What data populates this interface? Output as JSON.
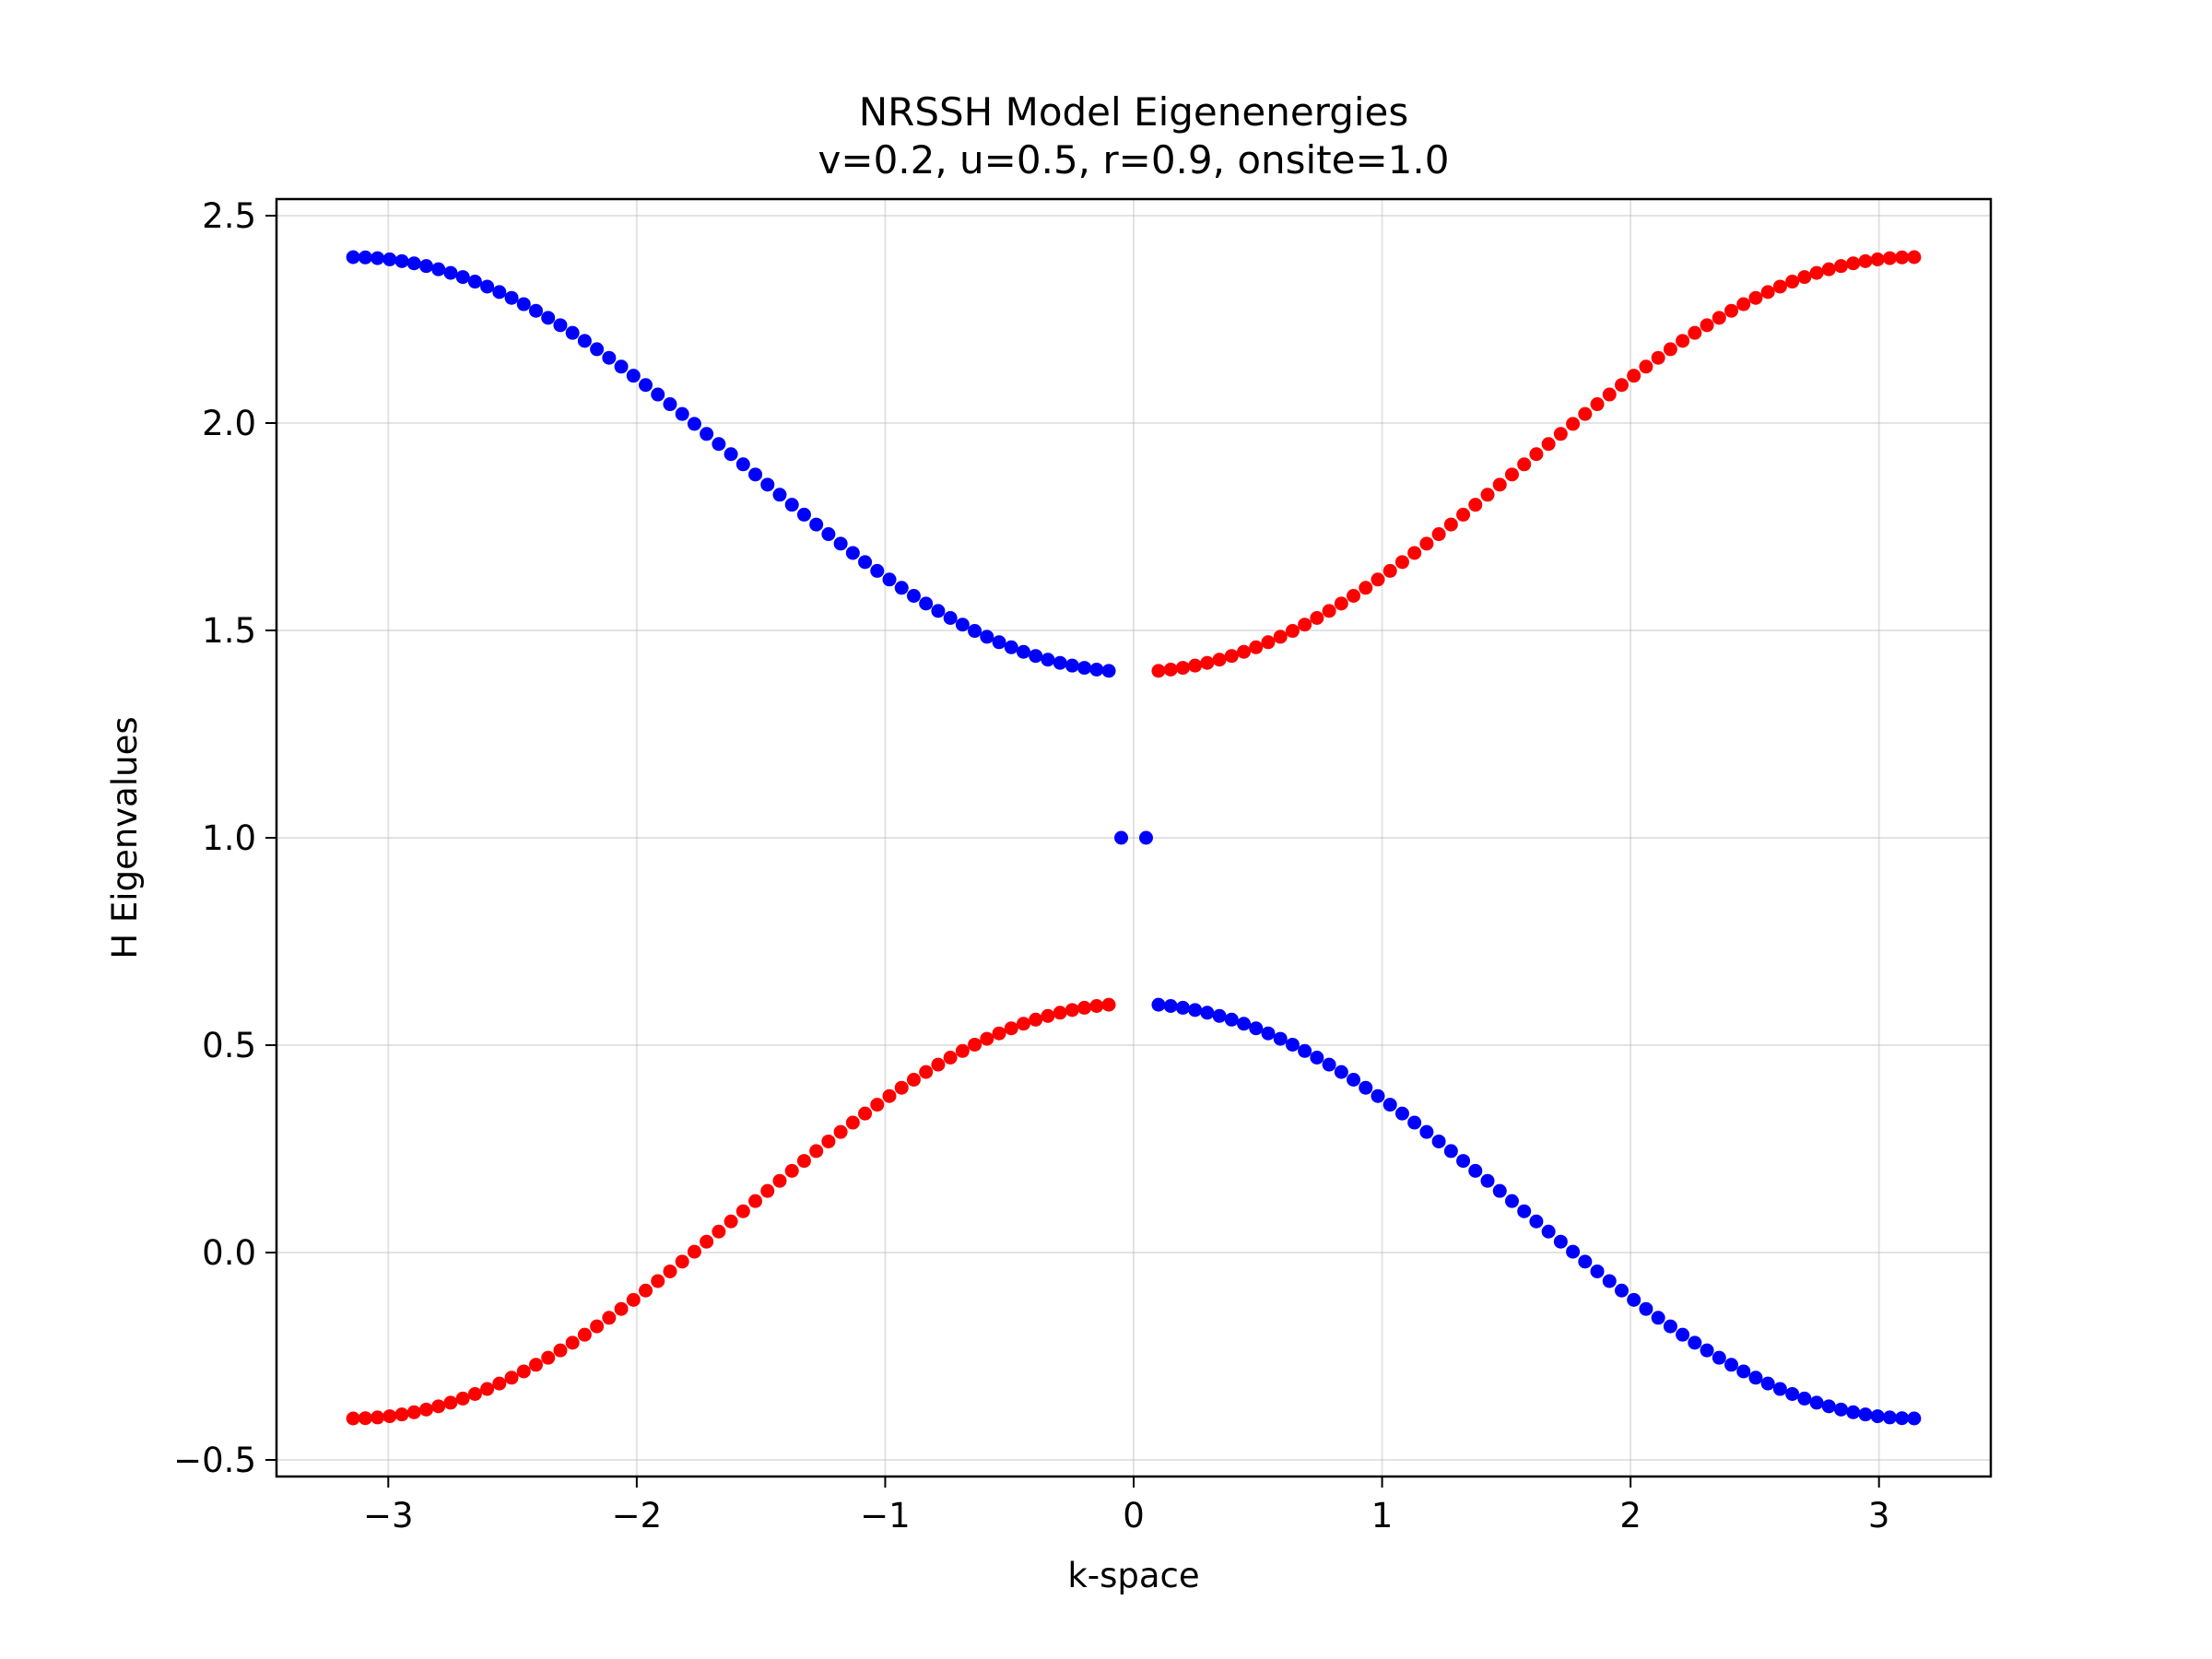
{
  "chart_data": {
    "type": "scatter",
    "title": "NRSSH Model Eigenenergies",
    "subtitle": "v=0.2, u=0.5, r=0.9, onsite=1.0",
    "xlabel": "k-space",
    "ylabel": "H Eigenvalues",
    "xlim": [
      -3.45,
      3.45
    ],
    "ylim": [
      -0.54,
      2.54
    ],
    "xticks": [
      -3,
      -2,
      -1,
      0,
      1,
      2,
      3
    ],
    "xtick_labels": [
      "−3",
      "−2",
      "−1",
      "0",
      "1",
      "2",
      "3"
    ],
    "yticks": [
      -0.5,
      0.0,
      0.5,
      1.0,
      1.5,
      2.0,
      2.5
    ],
    "ytick_labels": [
      "−0.5",
      "0.0",
      "0.5",
      "1.0",
      "1.5",
      "2.0",
      "2.5"
    ],
    "grid": true,
    "model": {
      "v": 0.2,
      "u": 0.5,
      "r": 0.9,
      "onsite": 1.0
    },
    "k_range": [
      -3.1416,
      3.1416
    ],
    "points_per_side": 63,
    "colors": {
      "blue": "#0000ff",
      "red": "#ff0000"
    },
    "series": [
      {
        "color": "blue",
        "description": "upper band for k<0, lower band for k>0, and k=0 points at 1.0"
      },
      {
        "color": "red",
        "description": "lower band for k<0, upper band for k>0"
      }
    ],
    "zero_points": [
      {
        "x": -0.05,
        "y": 1.0
      },
      {
        "x": 0.05,
        "y": 1.0
      }
    ]
  }
}
